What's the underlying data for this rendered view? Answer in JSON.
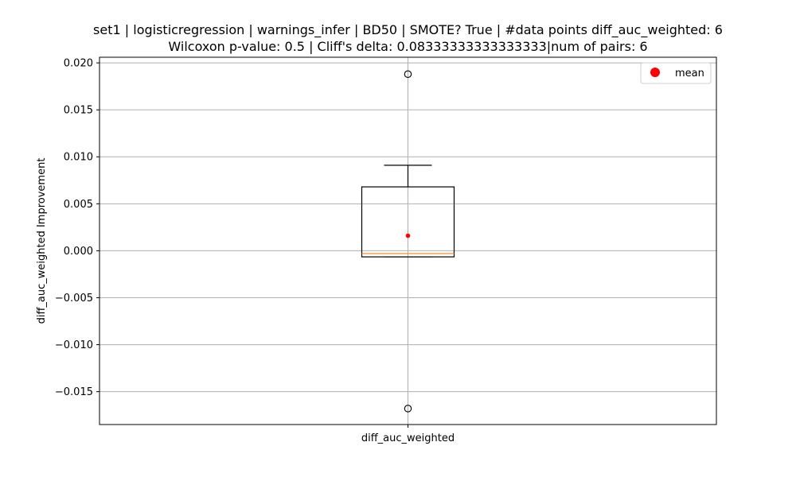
{
  "chart_data": {
    "type": "box",
    "title_line1": "set1 | logisticregression | warnings_infer | BD50 | SMOTE? True | #data points diff_auc_weighted: 6",
    "title_line2": "Wilcoxon p-value: 0.5 | Cliff's delta: 0.08333333333333333|num of pairs: 6",
    "xlabel": "",
    "ylabel": "diff_auc_weighted Improvement",
    "categories": [
      "diff_auc_weighted"
    ],
    "ylim": [
      -0.0185,
      0.0206
    ],
    "yticks": [
      0.02,
      0.015,
      0.01,
      0.005,
      0.0,
      -0.005,
      -0.01,
      -0.015
    ],
    "ytick_labels": [
      "0.020",
      "0.015",
      "0.010",
      "0.005",
      "0.000",
      "−0.005",
      "−0.010",
      "−0.015"
    ],
    "box": {
      "q1": -0.00065,
      "median": -0.0003,
      "q3": 0.0068,
      "whisker_low": -0.00065,
      "whisker_high": 0.0091,
      "mean": 0.0016,
      "outliers": [
        0.0188,
        -0.0168
      ]
    },
    "legend": {
      "label": "mean",
      "position": "upper right"
    },
    "grid": true,
    "colors": {
      "box": "#000000",
      "median": "#ff7f0e",
      "mean": "#ff0000",
      "grid": "#b0b0b0"
    }
  }
}
